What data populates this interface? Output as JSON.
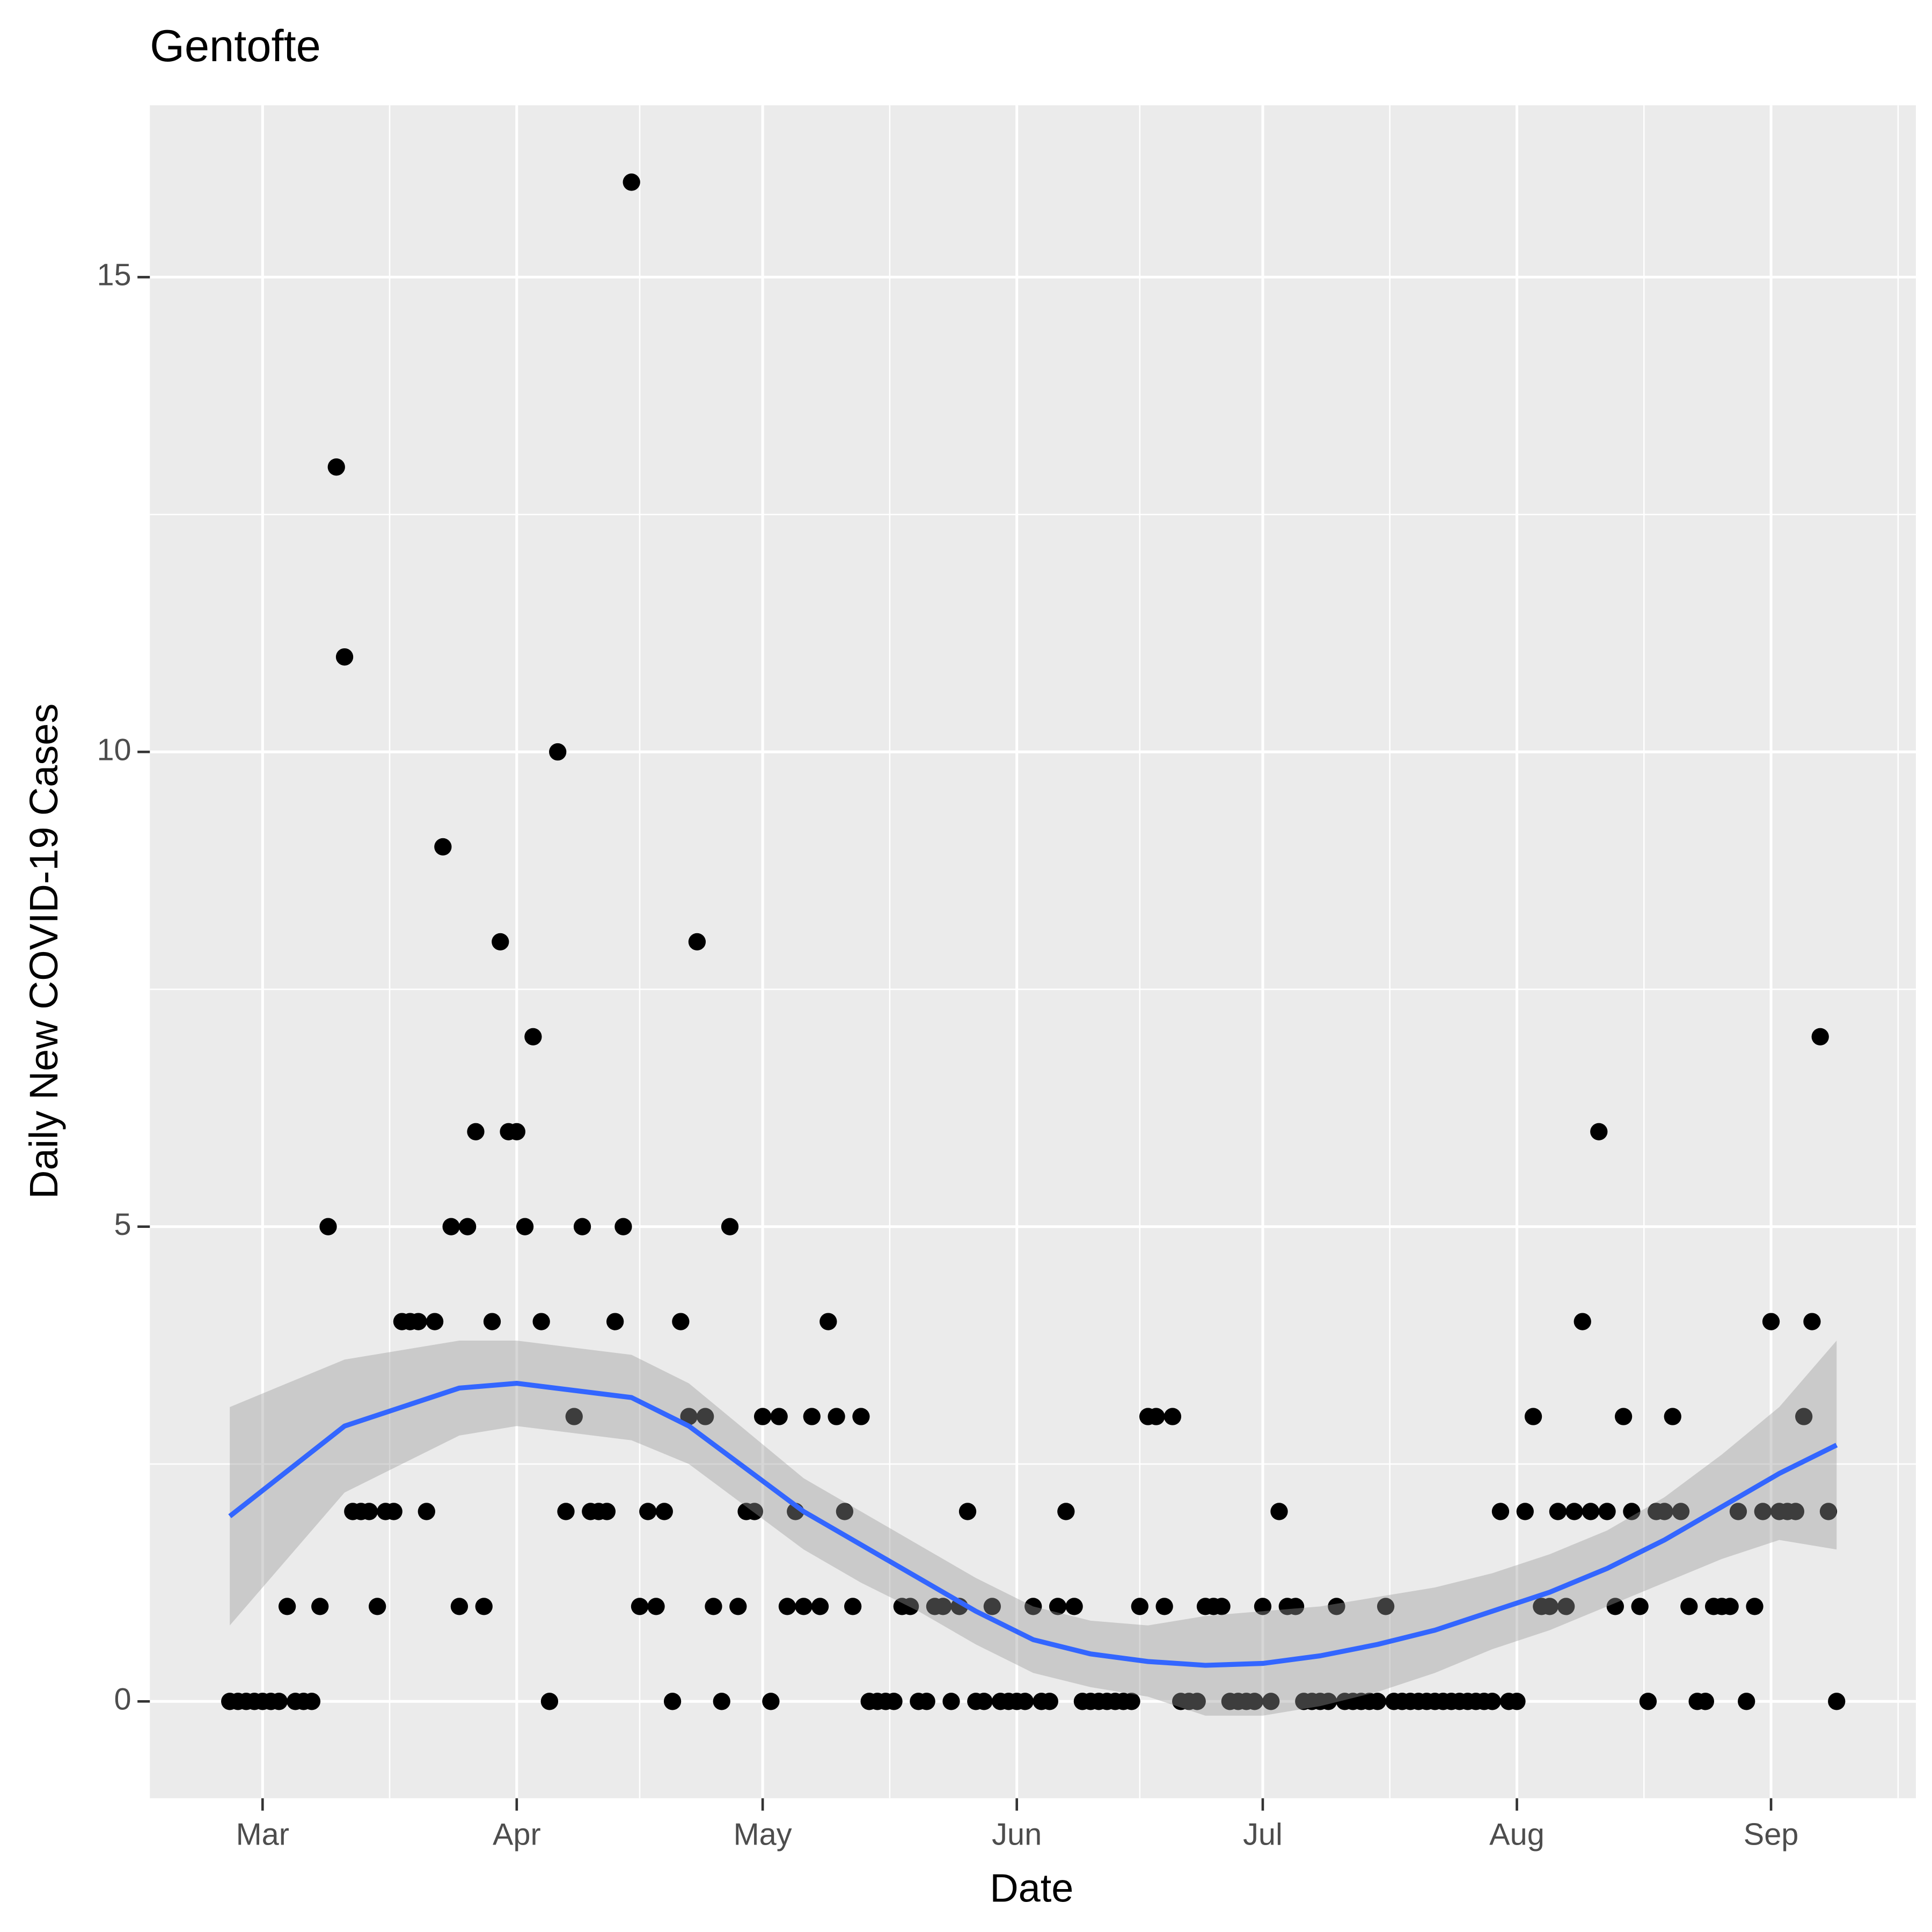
{
  "chart_data": {
    "type": "scatter",
    "title": "Gentofte",
    "x_label": "Date",
    "y_label": "Daily New COVID-19 Cases",
    "xlim": [
      47.25,
      262.67
    ],
    "ylim": [
      -1.02,
      16.81
    ],
    "xticks": [
      {
        "value": 61,
        "label": "Mar"
      },
      {
        "value": 92,
        "label": "Apr"
      },
      {
        "value": 122,
        "label": "May"
      },
      {
        "value": 153,
        "label": "Jun"
      },
      {
        "value": 183,
        "label": "Jul"
      },
      {
        "value": 214,
        "label": "Aug"
      },
      {
        "value": 245,
        "label": "Sep"
      }
    ],
    "yticks": [
      0,
      5,
      10,
      15
    ],
    "grid": true,
    "minor_grid": true,
    "series": [
      {
        "color": "#000000",
        "x": [
          57,
          58,
          59,
          60,
          61,
          62,
          63,
          64,
          65,
          66,
          67,
          68,
          69,
          70,
          71,
          72,
          73,
          74,
          75,
          76,
          77,
          78,
          79,
          80,
          81,
          82,
          83,
          84,
          85,
          86,
          87,
          88,
          89,
          90,
          91,
          92,
          93,
          94,
          95,
          96,
          97,
          98,
          99,
          100,
          101,
          102,
          103,
          104,
          105,
          106,
          107,
          108,
          109,
          110,
          111,
          112,
          113,
          114,
          115,
          116,
          117,
          118,
          119,
          120,
          121,
          122,
          123,
          124,
          125,
          126,
          127,
          128,
          129,
          130,
          131,
          132,
          133,
          134,
          135,
          136,
          137,
          138,
          139,
          140,
          141,
          142,
          143,
          144,
          145,
          146,
          147,
          148,
          149,
          150,
          151,
          152,
          153,
          154,
          155,
          156,
          157,
          158,
          159,
          160,
          161,
          162,
          163,
          164,
          165,
          166,
          167,
          168,
          169,
          170,
          171,
          172,
          173,
          174,
          175,
          176,
          177,
          178,
          179,
          180,
          181,
          182,
          183,
          184,
          185,
          186,
          187,
          188,
          189,
          190,
          191,
          192,
          193,
          194,
          195,
          196,
          197,
          198,
          199,
          200,
          201,
          202,
          203,
          204,
          205,
          206,
          207,
          208,
          209,
          210,
          211,
          212,
          213,
          214,
          215,
          216,
          217,
          218,
          219,
          220,
          221,
          222,
          223,
          224,
          225,
          226,
          227,
          228,
          229,
          230,
          231,
          232,
          233,
          234,
          235,
          236,
          237,
          238,
          239,
          240,
          241,
          242,
          243,
          244,
          245,
          246,
          247,
          248,
          249,
          250,
          251,
          252,
          253
        ],
        "values": [
          0,
          0,
          0,
          0,
          0,
          0,
          0,
          1,
          0,
          0,
          0,
          1,
          5,
          13,
          11,
          2,
          2,
          2,
          1,
          2,
          2,
          4,
          4,
          4,
          2,
          4,
          9,
          5,
          1,
          5,
          6,
          1,
          4,
          8,
          6,
          6,
          5,
          7,
          4,
          0,
          10,
          2,
          3,
          5,
          2,
          2,
          2,
          4,
          5,
          16,
          1,
          2,
          1,
          2,
          0,
          4,
          3,
          8,
          3,
          1,
          0,
          5,
          1,
          2,
          2,
          3,
          0,
          3,
          1,
          2,
          1,
          3,
          1,
          4,
          3,
          2,
          1,
          3,
          0,
          0,
          0,
          0,
          1,
          1,
          0,
          0,
          1,
          1,
          0,
          1,
          2,
          0,
          0,
          1,
          0,
          0,
          0,
          0,
          1,
          0,
          0,
          1,
          2,
          1,
          0,
          0,
          0,
          0,
          0,
          0,
          0,
          1,
          3,
          3,
          1,
          3,
          0,
          0,
          0,
          1,
          1,
          1,
          0,
          0,
          0,
          0,
          1,
          0,
          2,
          1,
          1,
          0,
          0,
          0,
          0,
          1,
          0,
          0,
          0,
          0,
          0,
          1,
          0,
          0,
          0,
          0,
          0,
          0,
          0,
          0,
          0,
          0,
          0,
          0,
          0,
          2,
          0,
          0,
          2,
          3,
          1,
          1,
          2,
          1,
          2,
          4,
          2,
          6,
          2,
          1,
          3,
          2,
          1,
          0,
          2,
          2,
          3,
          2,
          1,
          0,
          0,
          1,
          1,
          1,
          2,
          0,
          1,
          2,
          4,
          2,
          2,
          2,
          3,
          4,
          7,
          2,
          0
        ]
      }
    ],
    "smooth": {
      "color": "#3366ff",
      "band_color": "#999999",
      "x": [
        57,
        71,
        85,
        92,
        106,
        113,
        120,
        127,
        134,
        141,
        148,
        155,
        162,
        169,
        176,
        183,
        190,
        197,
        204,
        211,
        218,
        225,
        232,
        239,
        246,
        253
      ],
      "values": [
        1.95,
        2.9,
        3.3,
        3.35,
        3.2,
        2.9,
        2.45,
        2.0,
        1.65,
        1.3,
        0.95,
        0.65,
        0.5,
        0.42,
        0.38,
        0.4,
        0.48,
        0.6,
        0.75,
        0.95,
        1.15,
        1.4,
        1.7,
        2.05,
        2.4,
        2.7
      ],
      "lower": [
        0.8,
        2.2,
        2.8,
        2.9,
        2.75,
        2.5,
        2.05,
        1.6,
        1.25,
        0.95,
        0.6,
        0.3,
        0.15,
        0.05,
        -0.15,
        -0.15,
        -0.05,
        0.1,
        0.3,
        0.55,
        0.75,
        1.0,
        1.25,
        1.5,
        1.7,
        1.6
      ],
      "upper": [
        3.1,
        3.6,
        3.8,
        3.8,
        3.65,
        3.35,
        2.85,
        2.35,
        2.0,
        1.65,
        1.3,
        1.0,
        0.85,
        0.8,
        0.9,
        0.95,
        1.0,
        1.1,
        1.2,
        1.35,
        1.55,
        1.8,
        2.15,
        2.6,
        3.1,
        3.8
      ]
    }
  }
}
